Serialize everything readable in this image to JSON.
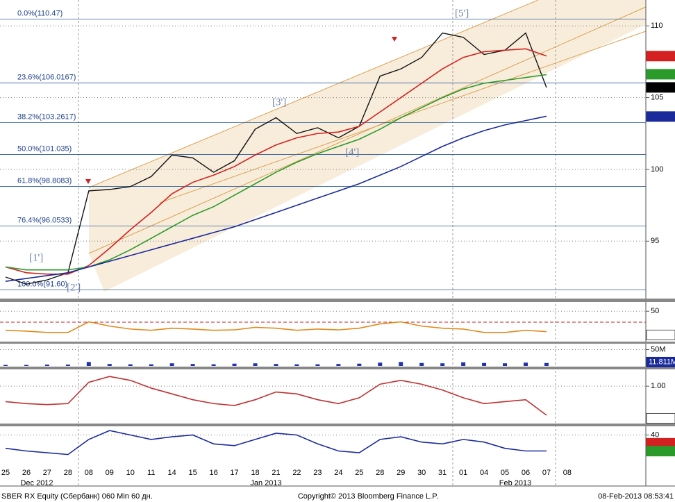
{
  "chart_data": [
    {
      "type": "line",
      "categories": [
        "25",
        "26",
        "27",
        "28",
        "08",
        "09",
        "10",
        "11",
        "14",
        "15",
        "16",
        "17",
        "18",
        "21",
        "22",
        "23",
        "24",
        "25",
        "28",
        "29",
        "30",
        "31",
        "01",
        "04",
        "05",
        "06",
        "07",
        "08"
      ],
      "months": [
        "Dec 2012",
        "Jan 2013",
        "Feb 2013"
      ],
      "ylim": [
        91,
        111.8
      ],
      "yticks": [
        95,
        100,
        105,
        110
      ],
      "series": [
        {
          "color": "#111111",
          "values": [
            92.5,
            92.0,
            92.3,
            92.8,
            98.5,
            98.6,
            98.8,
            99.5,
            101.0,
            100.8,
            99.8,
            100.6,
            102.8,
            103.6,
            102.5,
            102.9,
            102.2,
            103.0,
            106.5,
            107.0,
            107.8,
            109.5,
            109.2,
            108.0,
            108.3,
            109.5,
            105.7,
            null
          ]
        },
        {
          "color": "#d42020",
          "values": [
            93.2,
            92.8,
            92.7,
            92.7,
            93.3,
            94.5,
            95.8,
            97.0,
            98.3,
            99.1,
            99.6,
            100.2,
            101.0,
            101.7,
            102.2,
            102.5,
            102.6,
            103.0,
            104.0,
            105.0,
            106.0,
            107.0,
            107.8,
            108.2,
            108.3,
            108.4,
            107.9,
            null
          ]
        },
        {
          "color": "#2a9a2a",
          "values": [
            93.2,
            93.0,
            93.0,
            93.0,
            93.2,
            93.7,
            94.4,
            95.2,
            96.0,
            96.8,
            97.4,
            98.2,
            99.0,
            99.8,
            100.5,
            101.1,
            101.6,
            102.1,
            102.8,
            103.6,
            104.3,
            105.0,
            105.6,
            106.0,
            106.2,
            106.4,
            106.6,
            null
          ]
        },
        {
          "color": "#1a2a9a",
          "values": [
            92.2,
            92.4,
            92.6,
            92.8,
            93.2,
            93.6,
            94.0,
            94.4,
            94.8,
            95.2,
            95.6,
            96.0,
            96.5,
            97.0,
            97.5,
            98.0,
            98.5,
            99.0,
            99.6,
            100.2,
            100.9,
            101.6,
            102.2,
            102.7,
            103.1,
            103.4,
            103.7,
            null
          ]
        }
      ],
      "fib_levels": [
        {
          "value": 110.47,
          "label": "0.0%(110.47)"
        },
        {
          "value": 106.0167,
          "label": "23.6%(106.0167)"
        },
        {
          "value": 103.2617,
          "label": "38.2%(103.2617)"
        },
        {
          "value": 101.035,
          "label": "50.0%(101.035)"
        },
        {
          "value": 98.8083,
          "label": "61.8%(98.8083)"
        },
        {
          "value": 96.0533,
          "label": "76.4%(96.0533)"
        },
        {
          "value": 91.6,
          "label": "100.0%(91.60)"
        }
      ],
      "annotations": [
        "[1']",
        "[2']",
        "[3']",
        "[4']",
        "[5']"
      ],
      "tags": [
        {
          "value": 107.8932,
          "color": "#d42020"
        },
        {
          "value": 106.6291,
          "color": "#2a9a2a"
        },
        {
          "value": 105.71,
          "color": "#000000"
        },
        {
          "value": 103.681,
          "color": "#1a2a9a"
        }
      ]
    },
    {
      "type": "line",
      "ylim": [
        -20,
        70
      ],
      "yticks": [
        50
      ],
      "series": [
        {
          "color": "#e08a1e",
          "values": [
            5,
            3,
            0,
            0,
            25,
            15,
            8,
            5,
            10,
            8,
            5,
            6,
            12,
            10,
            5,
            8,
            6,
            10,
            20,
            25,
            15,
            10,
            8,
            0,
            0,
            5,
            2,
            null
          ]
        }
      ],
      "tags": [
        {
          "value": -5.9334,
          "color": "#ffffff"
        }
      ]
    },
    {
      "type": "bar",
      "ylim": [
        0,
        66
      ],
      "yticks": [
        {
          "value": 50,
          "label": "50M"
        }
      ],
      "color": "#2233aa",
      "values": [
        3,
        3,
        4,
        4,
        12,
        6,
        5,
        5,
        8,
        6,
        5,
        7,
        8,
        6,
        5,
        5,
        6,
        7,
        10,
        12,
        9,
        8,
        11,
        9,
        8,
        10,
        9,
        null
      ],
      "tags": [
        {
          "value": 11.811,
          "label": "11.811M",
          "color": "#1a2a9a"
        }
      ]
    },
    {
      "type": "line",
      "ylim": [
        -0.93,
        1.83
      ],
      "yticks": [
        {
          "value": 1,
          "label": "1.00"
        }
      ],
      "series": [
        {
          "color": "#c03030",
          "values": [
            0.2,
            0.1,
            0.05,
            0.1,
            1.2,
            1.5,
            1.3,
            0.9,
            0.6,
            0.3,
            0.1,
            0.0,
            0.3,
            0.7,
            0.6,
            0.3,
            0.1,
            0.4,
            1.1,
            1.3,
            1.1,
            0.8,
            0.4,
            0.1,
            0.2,
            0.3,
            -0.5,
            null
          ]
        }
      ],
      "tags": [
        {
          "value": -0.6602,
          "color": "#ffffff"
        }
      ]
    },
    {
      "type": "line",
      "ylim": [
        13,
        49
      ],
      "yticks": [
        40
      ],
      "series": [
        {
          "color": "#1a2aa0",
          "values": [
            25,
            22,
            20,
            18,
            35,
            45,
            40,
            35,
            38,
            40,
            30,
            28,
            35,
            42,
            40,
            30,
            22,
            20,
            35,
            38,
            32,
            30,
            35,
            32,
            25,
            22,
            22,
            null
          ]
        }
      ],
      "tags": [
        {
          "value": 30.7171,
          "color": "#d42020"
        },
        {
          "value": 21.8316,
          "color": "#2a9a2a"
        }
      ]
    }
  ],
  "footer": {
    "left": "SBER RX Equity (Сбербанк) 060 Min 60 дн.",
    "center": "Copyright© 2013 Bloomberg Finance L.P.",
    "right": "08-Feb-2013 08:53:41"
  }
}
